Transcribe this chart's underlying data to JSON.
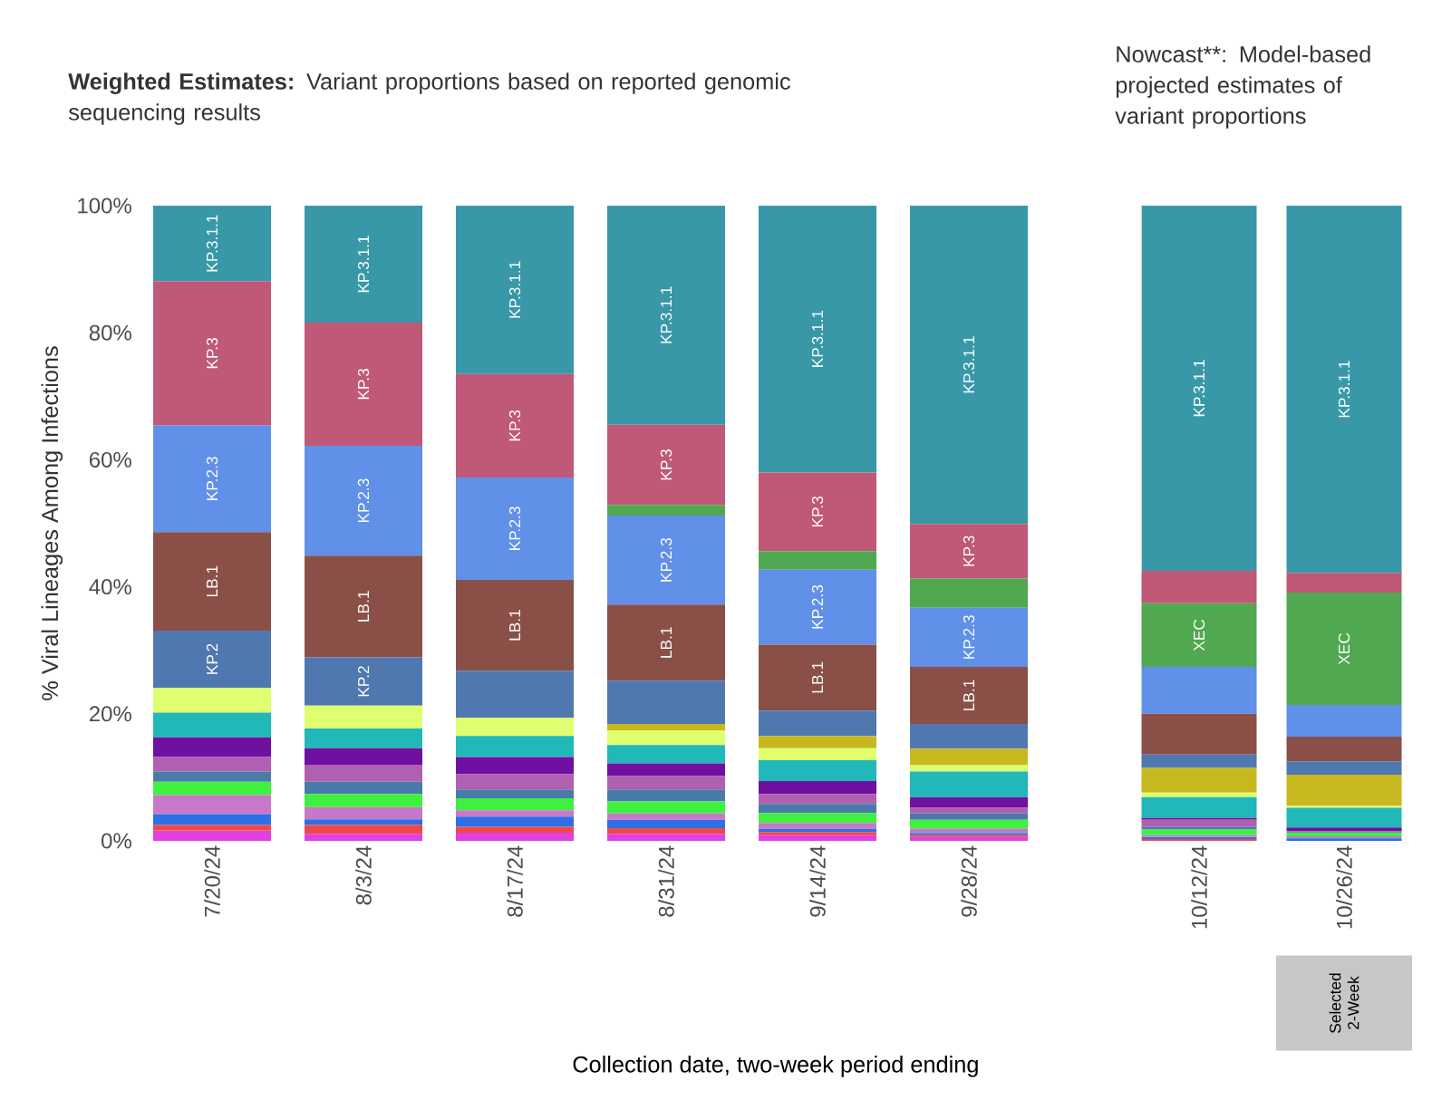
{
  "chart_data": [
    {
      "type": "bar",
      "stacked": true,
      "title": "**Weighted Estimates:** Variant proportions based on reported genomic sequencing results",
      "ylabel": "% Viral Lineages Among Infections",
      "xlabel": "Collection date, two-week period ending",
      "categories": [
        "7/20/24",
        "8/3/24",
        "8/17/24",
        "8/31/24",
        "9/14/24",
        "9/28/24"
      ],
      "ylim": [
        0,
        100
      ],
      "yticks": [
        {
          "value": 0,
          "label": "0%"
        },
        {
          "value": 20,
          "label": "20%"
        },
        {
          "value": 40,
          "label": "40%"
        },
        {
          "value": 60,
          "label": "60%"
        },
        {
          "value": 80,
          "label": "80%"
        },
        {
          "value": 100,
          "label": "100%"
        }
      ],
      "series": [
        {
          "color": "#e040e0",
          "values": [
            1.6,
            1.1,
            1.3,
            1.1,
            0.9,
            0.6
          ]
        },
        {
          "color": "#f04848",
          "values": [
            0.9,
            1.4,
            0.9,
            0.9,
            0.5,
            0.3
          ]
        },
        {
          "color": "#2e6ee6",
          "values": [
            1.7,
            0.9,
            1.6,
            1.3,
            0.5,
            0.3
          ]
        },
        {
          "color": "#c878c8",
          "values": [
            3.0,
            1.9,
            1.0,
            1.0,
            0.9,
            0.7
          ]
        },
        {
          "color": "#40f040",
          "values": [
            2.1,
            2.1,
            1.9,
            1.9,
            1.6,
            1.4
          ]
        },
        {
          "color": "#4a7aa8",
          "values": [
            1.6,
            1.9,
            1.4,
            1.9,
            1.4,
            1.0
          ]
        },
        {
          "color": "#b060b0",
          "values": [
            2.3,
            2.7,
            2.4,
            2.1,
            1.6,
            0.9
          ]
        },
        {
          "color": "#7010a0",
          "values": [
            3.1,
            2.6,
            2.7,
            2.0,
            2.0,
            1.7
          ]
        },
        {
          "color": "#20b8b8",
          "values": [
            3.9,
            3.1,
            3.3,
            2.9,
            3.3,
            4.0
          ]
        },
        {
          "color": "#e0ff70",
          "values": [
            3.9,
            3.6,
            2.9,
            2.3,
            1.9,
            1.0
          ]
        },
        {
          "color": "#c8b820",
          "values": [
            0,
            0,
            0,
            1.0,
            1.9,
            2.6
          ]
        },
        {
          "name": "KP.2",
          "color": "#5078b0",
          "values": [
            9.0,
            7.6,
            7.4,
            6.8,
            4.0,
            3.9
          ]
        },
        {
          "name": "LB.1",
          "color": "#8a5048",
          "values": [
            15.5,
            16.0,
            14.3,
            12.0,
            10.4,
            9.0
          ]
        },
        {
          "name": "KP.2.3",
          "color": "#6090e8",
          "values": [
            16.8,
            17.3,
            16.1,
            14.0,
            11.8,
            9.3
          ]
        },
        {
          "color": "#50a850",
          "values": [
            0,
            0,
            0,
            1.7,
            2.9,
            4.6
          ]
        },
        {
          "name": "KP.3",
          "color": "#c05878",
          "values": [
            22.7,
            19.4,
            16.3,
            12.6,
            12.4,
            8.6
          ]
        },
        {
          "name": "KP.3.1.1",
          "color": "#3898a8",
          "values": [
            11.9,
            18.4,
            26.5,
            34.5,
            42.0,
            50.1
          ]
        }
      ]
    },
    {
      "type": "bar",
      "stacked": true,
      "title": "Nowcast**: Model-based projected estimates of variant proportions",
      "tick_labels": "x",
      "categories": [
        "10/12/24",
        "10/26/24"
      ],
      "ylim": [
        0,
        100
      ],
      "annotations": [
        "Selected 2-Week"
      ],
      "series": [
        {
          "color": "#f04848",
          "values": [
            0.3,
            0
          ]
        },
        {
          "color": "#2e6ee6",
          "values": [
            0.3,
            0.4
          ]
        },
        {
          "color": "#c878c8",
          "values": [
            0.3,
            0.3
          ]
        },
        {
          "color": "#40f040",
          "values": [
            0.9,
            0.6
          ]
        },
        {
          "color": "#4a7aa8",
          "values": [
            0.4,
            0.1
          ]
        },
        {
          "color": "#b060b0",
          "values": [
            1.1,
            0.1
          ]
        },
        {
          "color": "#7010a0",
          "values": [
            0.3,
            0.6
          ]
        },
        {
          "color": "#20b8b8",
          "values": [
            3.3,
            3.1
          ]
        },
        {
          "color": "#e0ff70",
          "values": [
            0.7,
            0.3
          ]
        },
        {
          "color": "#c8b820",
          "values": [
            3.9,
            4.9
          ]
        },
        {
          "color": "#5078b0",
          "values": [
            2.1,
            2.1
          ]
        },
        {
          "color": "#8a5048",
          "values": [
            6.4,
            3.9
          ]
        },
        {
          "color": "#6090e8",
          "values": [
            7.4,
            5.0
          ]
        },
        {
          "name": "XEC",
          "color": "#50a850",
          "values": [
            10.0,
            17.7
          ]
        },
        {
          "color": "#c05878",
          "values": [
            5.1,
            3.1
          ]
        },
        {
          "name": "KP.3.1.1",
          "color": "#3898a8",
          "values": [
            57.5,
            57.8
          ]
        }
      ]
    }
  ]
}
